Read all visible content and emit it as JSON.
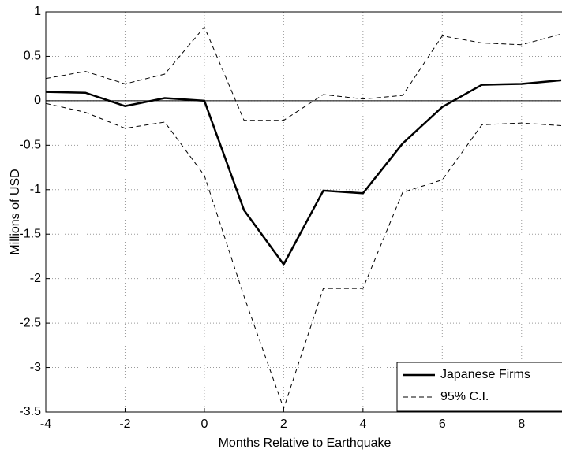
{
  "chart_data": {
    "type": "line",
    "xlabel": "Months Relative to Earthquake",
    "ylabel": "Millions of USD",
    "x": [
      -4,
      -3,
      -2,
      -1,
      0,
      1,
      2,
      3,
      4,
      5,
      6,
      7,
      8,
      9
    ],
    "series": [
      {
        "name": "Japanese Firms",
        "color": "#000000",
        "style": "solid",
        "values": [
          0.1,
          0.09,
          -0.06,
          0.03,
          0,
          -1.23,
          -1.84,
          -1.01,
          -1.04,
          -0.48,
          -0.07,
          0.18,
          0.19,
          0.23
        ]
      },
      {
        "name": "95% C.I.",
        "color": "#000000",
        "style": "dashed",
        "upper": [
          0.25,
          0.33,
          0.19,
          0.3,
          0.83,
          -0.22,
          -0.22,
          0.07,
          0.02,
          0.06,
          0.73,
          0.65,
          0.63,
          0.75
        ],
        "lower": [
          -0.03,
          -0.13,
          -0.31,
          -0.24,
          -0.84,
          -2.2,
          -3.46,
          -2.11,
          -2.11,
          -1.03,
          -0.89,
          -0.27,
          -0.25,
          -0.28
        ]
      }
    ],
    "xlim": [
      -4,
      9
    ],
    "xticks": [
      -4,
      -2,
      0,
      2,
      4,
      6,
      8
    ],
    "ylim": [
      -3.5,
      1
    ],
    "yticks": [
      -3.5,
      -3,
      -2.5,
      -2,
      -1.5,
      -1,
      -0.5,
      0,
      0.5,
      1
    ],
    "grid": true,
    "legend": "lower right"
  }
}
